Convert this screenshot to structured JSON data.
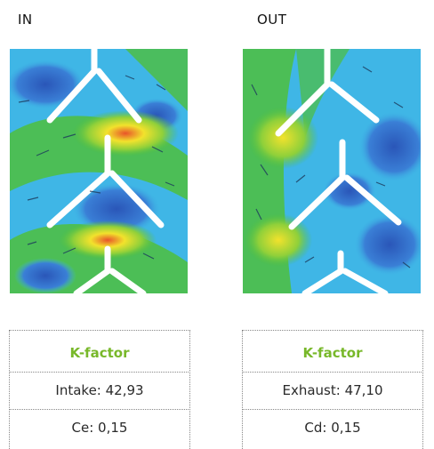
{
  "panels": [
    {
      "title": "IN",
      "table": {
        "heading": "K-factor",
        "row1": "Intake: 42,93",
        "row2": "Ce: 0,15"
      }
    },
    {
      "title": "OUT",
      "table": {
        "heading": "K-factor",
        "row1": "Exhaust: 47,10",
        "row2": "Cd: 0,15"
      }
    }
  ],
  "colors": {
    "heading_green": "#78b82a",
    "flow_background": "#3fb6e6",
    "flow_low": "#2a56b8",
    "flow_mid": "#4fbf3c",
    "flow_high": "#f2e22c",
    "flow_peak": "#e8542a"
  }
}
